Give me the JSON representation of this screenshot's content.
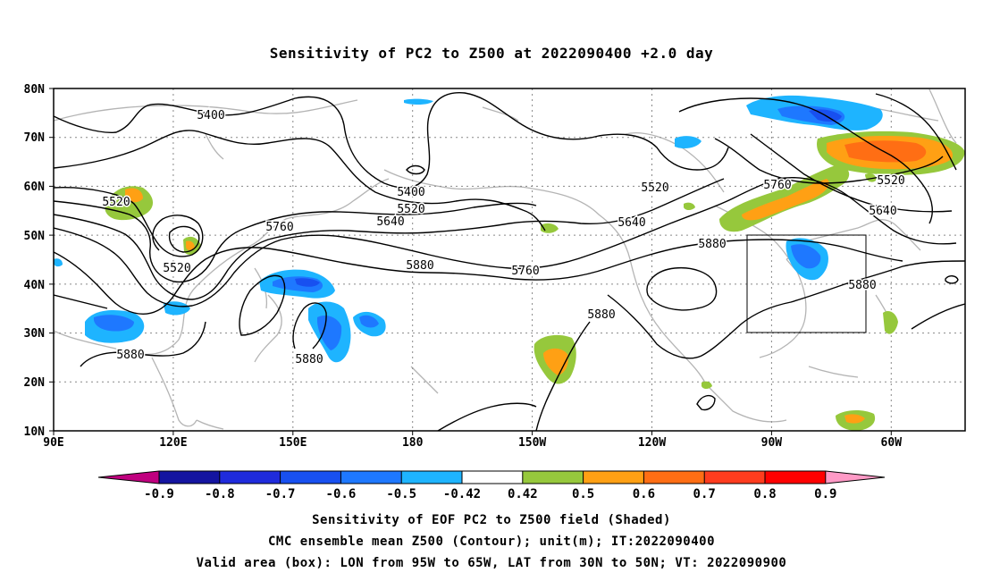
{
  "title": "Sensitivity of PC2 to Z500 at 2022090400 +2.0 day",
  "map": {
    "lat_labels": [
      "80N",
      "70N",
      "60N",
      "50N",
      "40N",
      "30N",
      "20N",
      "10N"
    ],
    "lon_labels": [
      "90E",
      "120E",
      "150E",
      "180",
      "150W",
      "120W",
      "90W",
      "60W"
    ],
    "contour_labels": [
      "5400",
      "5400",
      "5520",
      "5520",
      "5520",
      "5520",
      "5520",
      "5640",
      "5640",
      "5640",
      "5760",
      "5760",
      "5760",
      "5880",
      "5880",
      "5880",
      "5880",
      "5880",
      "5880"
    ],
    "box_region": "LON 95W-65W, LAT 30N-50N"
  },
  "colorbar": {
    "ticks": [
      "-0.9",
      "-0.8",
      "-0.7",
      "-0.6",
      "-0.5",
      "-0.42",
      "0.42",
      "0.5",
      "0.6",
      "0.7",
      "0.8",
      "0.9"
    ],
    "colors": [
      "#c0007f",
      "#1414a0",
      "#1f2bdc",
      "#1850f0",
      "#1e78ff",
      "#1eb4ff",
      "#ffffff",
      "#96c83c",
      "#ffa014",
      "#ff6e14",
      "#ff3c1e",
      "#ff0000",
      "#ff9ac6"
    ]
  },
  "captions": [
    "Sensitivity of EOF PC2 to Z500 field (Shaded)",
    "CMC ensemble mean Z500 (Contour); unit(m); IT:2022090400",
    "Valid area (box): LON from 95W to 65W, LAT from 30N to 50N; VT: 2022090900"
  ]
}
